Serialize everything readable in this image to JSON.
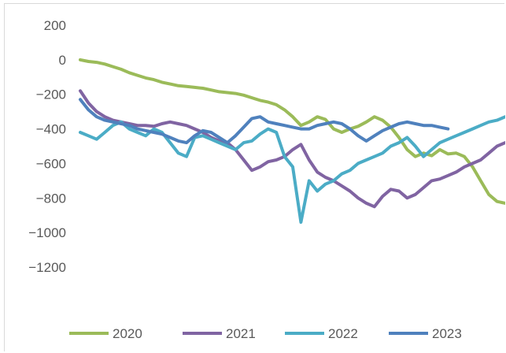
{
  "chart_data": {
    "type": "line",
    "title": "",
    "xlabel": "",
    "ylabel": "",
    "ylim": [
      -1200,
      200
    ],
    "yticks": [
      200,
      0,
      -200,
      -400,
      -600,
      -800,
      -1000,
      -1200
    ],
    "ytick_labels": [
      "200",
      "0",
      "−200",
      "−400",
      "−600",
      "−800",
      "−1000",
      "−1200"
    ],
    "xlim": [
      1,
      53
    ],
    "grid": false,
    "legend_position": "bottom",
    "series": [
      {
        "name": "2020",
        "color": "#9bbb59",
        "x": [
          1,
          2,
          3,
          4,
          5,
          6,
          7,
          8,
          9,
          10,
          11,
          12,
          13,
          14,
          15,
          16,
          17,
          18,
          19,
          20,
          21,
          22,
          23,
          24,
          25,
          26,
          27,
          28,
          29,
          30,
          31,
          32,
          33,
          34,
          35,
          36,
          37,
          38,
          39,
          40,
          41,
          42,
          43,
          44,
          45,
          46,
          47,
          48,
          49,
          50,
          51,
          52,
          53
        ],
        "values": [
          0,
          -10,
          -15,
          -25,
          -40,
          -55,
          -75,
          -90,
          -105,
          -115,
          -130,
          -140,
          -150,
          -155,
          -160,
          -165,
          -175,
          -185,
          -190,
          -195,
          -205,
          -220,
          -235,
          -245,
          -260,
          -290,
          -330,
          -380,
          -360,
          -330,
          -345,
          -400,
          -420,
          -400,
          -385,
          -360,
          -330,
          -350,
          -390,
          -450,
          -520,
          -560,
          -540,
          -555,
          -520,
          -545,
          -540,
          -560,
          -620,
          -700,
          -780,
          -820,
          -830
        ]
      },
      {
        "name": "2021",
        "color": "#8064a2",
        "x": [
          1,
          2,
          3,
          4,
          5,
          6,
          7,
          8,
          9,
          10,
          11,
          12,
          13,
          14,
          15,
          16,
          17,
          18,
          19,
          20,
          21,
          22,
          23,
          24,
          25,
          26,
          27,
          28,
          29,
          30,
          31,
          32,
          33,
          34,
          35,
          36,
          37,
          38,
          39,
          40,
          41,
          42,
          43,
          44,
          45,
          46,
          47,
          48,
          49,
          50,
          51,
          52,
          53
        ],
        "values": [
          -180,
          -250,
          -300,
          -330,
          -350,
          -360,
          -370,
          -380,
          -380,
          -385,
          -370,
          -360,
          -370,
          -380,
          -400,
          -420,
          -450,
          -470,
          -480,
          -520,
          -580,
          -640,
          -620,
          -590,
          -580,
          -560,
          -520,
          -490,
          -580,
          -650,
          -680,
          -700,
          -730,
          -760,
          -800,
          -830,
          -850,
          -790,
          -750,
          -760,
          -800,
          -780,
          -740,
          -700,
          -690,
          -670,
          -650,
          -620,
          -600,
          -580,
          -540,
          -500,
          -480
        ]
      },
      {
        "name": "2022",
        "color": "#4bacc6",
        "x": [
          1,
          2,
          3,
          4,
          5,
          6,
          7,
          8,
          9,
          10,
          11,
          12,
          13,
          14,
          15,
          16,
          17,
          18,
          19,
          20,
          21,
          22,
          23,
          24,
          25,
          26,
          27,
          28,
          29,
          30,
          31,
          32,
          33,
          34,
          35,
          36,
          37,
          38,
          39,
          40,
          41,
          42,
          43,
          44,
          45,
          46,
          47,
          48,
          49,
          50,
          51,
          52,
          53
        ],
        "values": [
          -420,
          -440,
          -460,
          -420,
          -380,
          -360,
          -400,
          -420,
          -440,
          -400,
          -420,
          -480,
          -540,
          -560,
          -450,
          -440,
          -460,
          -480,
          -500,
          -520,
          -480,
          -470,
          -430,
          -400,
          -420,
          -560,
          -620,
          -940,
          -700,
          -760,
          -720,
          -700,
          -660,
          -640,
          -600,
          -580,
          -560,
          -540,
          -500,
          -480,
          -450,
          -500,
          -560,
          -520,
          -480,
          -460,
          -440,
          -420,
          -400,
          -380,
          -360,
          -350,
          -330
        ]
      },
      {
        "name": "2023",
        "color": "#4f81bd",
        "x": [
          1,
          2,
          3,
          4,
          5,
          6,
          7,
          8,
          9,
          10,
          11,
          12,
          13,
          14,
          15,
          16,
          17,
          18,
          19,
          20,
          21,
          22,
          23,
          24,
          25,
          26,
          27,
          28,
          29,
          30,
          31,
          32,
          33,
          34,
          35,
          36,
          37,
          38,
          39,
          40,
          41,
          42,
          43,
          44,
          45,
          46
        ],
        "values": [
          -230,
          -290,
          -330,
          -350,
          -360,
          -370,
          -380,
          -400,
          -410,
          -420,
          -430,
          -450,
          -470,
          -480,
          -440,
          -410,
          -420,
          -450,
          -480,
          -440,
          -390,
          -340,
          -330,
          -360,
          -370,
          -380,
          -390,
          -400,
          -400,
          -380,
          -370,
          -360,
          -370,
          -400,
          -440,
          -470,
          -440,
          -410,
          -390,
          -370,
          -360,
          -370,
          -380,
          -380,
          -390,
          -400
        ]
      }
    ]
  }
}
